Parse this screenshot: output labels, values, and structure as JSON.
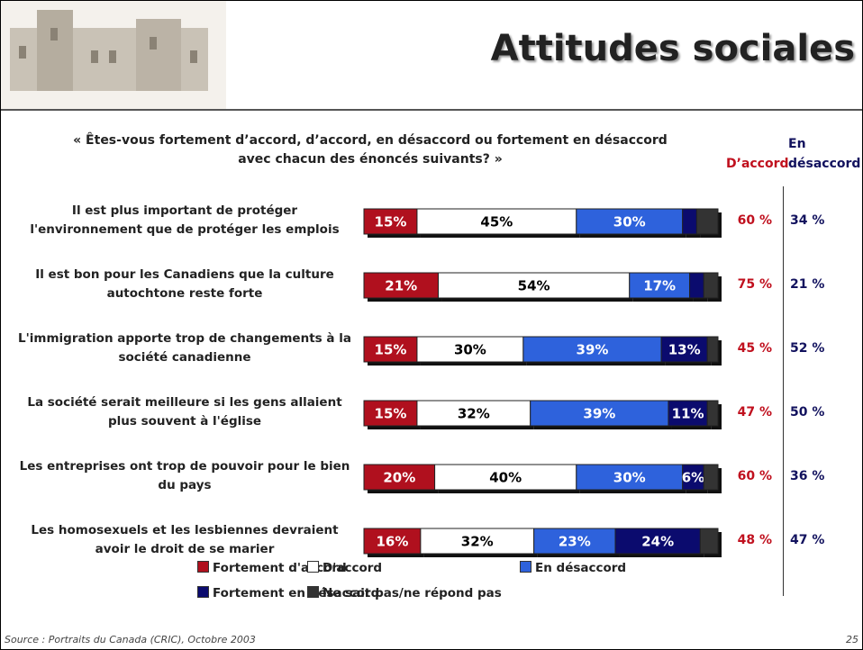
{
  "page": {
    "title": "Attitudes sociales",
    "source": "Source : Portraits du Canada (CRIC), Octobre 2003",
    "page_number": "25"
  },
  "chart_data": {
    "type": "stacked-bar-horizontal",
    "title": "« Êtes-vous fortement d’accord, d’accord, en désaccord ou fortement en désaccord avec chacun des énoncés suivants? »",
    "categories": [
      "Il est plus important de protéger l'environnement que de protéger les emplois",
      "Il est bon pour les Canadiens que la culture autochtone reste forte",
      "L'immigration apporte trop de changements à la société canadienne",
      "La société serait meilleure si les gens allaient plus souvent à l'église",
      "Les entreprises ont trop de pouvoir pour le bien du pays",
      "Les homosexuels et les lesbiennes devraient avoir le droit de se marier"
    ],
    "xlim": [
      0,
      100
    ],
    "series": [
      {
        "name": "Fortement d'accord",
        "color": "#b0101e",
        "text_color": "#ffffff",
        "values": [
          15,
          21,
          15,
          15,
          20,
          16
        ],
        "value_labels": [
          "15%",
          "21%",
          "15%",
          "15%",
          "20%",
          "16%"
        ]
      },
      {
        "name": "D'accord",
        "color": "#ffffff",
        "text_color": "#000000",
        "values": [
          45,
          54,
          30,
          32,
          40,
          32
        ],
        "value_labels": [
          "45%",
          "54%",
          "30%",
          "32%",
          "40%",
          "32%"
        ]
      },
      {
        "name": "En désaccord",
        "color": "#2e62dc",
        "text_color": "#ffffff",
        "values": [
          30,
          17,
          39,
          39,
          30,
          23
        ],
        "value_labels": [
          "30%",
          "17%",
          "39%",
          "39%",
          "30%",
          "23%"
        ]
      },
      {
        "name": "Fortement en désaccord",
        "color": "#0b0b6e",
        "text_color": "#ffffff",
        "values": [
          4,
          4,
          13,
          11,
          6,
          24
        ],
        "value_labels": [
          null,
          null,
          "13%",
          "11%",
          "6%",
          "24%"
        ]
      },
      {
        "name": "Ne sait pas/ne répond pas",
        "color": "#333333",
        "text_color": "#ffffff",
        "values": [
          6,
          4,
          3,
          3,
          4,
          5
        ],
        "value_labels": [
          null,
          null,
          null,
          null,
          null,
          null
        ]
      }
    ],
    "totals": [
      {
        "name": "D’accord",
        "color": "#c0101e",
        "values": [
          60,
          75,
          45,
          47,
          60,
          48
        ],
        "value_labels": [
          "60 %",
          "75 %",
          "45 %",
          "47 %",
          "60 %",
          "48 %"
        ]
      },
      {
        "name": "En désaccord",
        "color": "#12125e",
        "values": [
          34,
          21,
          52,
          50,
          36,
          47
        ],
        "value_labels": [
          "34 %",
          "21 %",
          "52 %",
          "50 %",
          "36 %",
          "47 %"
        ]
      }
    ]
  }
}
